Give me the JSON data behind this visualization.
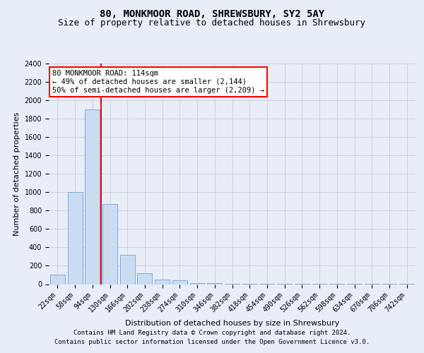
{
  "title1": "80, MONKMOOR ROAD, SHREWSBURY, SY2 5AY",
  "title2": "Size of property relative to detached houses in Shrewsbury",
  "xlabel": "Distribution of detached houses by size in Shrewsbury",
  "ylabel": "Number of detached properties",
  "footnote1": "Contains HM Land Registry data © Crown copyright and database right 2024.",
  "footnote2": "Contains public sector information licensed under the Open Government Licence v3.0.",
  "categories": [
    "22sqm",
    "58sqm",
    "94sqm",
    "130sqm",
    "166sqm",
    "202sqm",
    "238sqm",
    "274sqm",
    "310sqm",
    "346sqm",
    "382sqm",
    "418sqm",
    "454sqm",
    "490sqm",
    "526sqm",
    "562sqm",
    "598sqm",
    "634sqm",
    "670sqm",
    "706sqm",
    "742sqm"
  ],
  "values": [
    100,
    1000,
    1900,
    870,
    320,
    120,
    50,
    40,
    15,
    10,
    5,
    5,
    3,
    3,
    2,
    2,
    1,
    1,
    1,
    1,
    1
  ],
  "bar_color": "#ccdcf0",
  "bar_edge_color": "#7aaadc",
  "vline_x": 2.5,
  "vline_color": "red",
  "annotation_text": "80 MONKMOOR ROAD: 114sqm\n← 49% of detached houses are smaller (2,144)\n50% of semi-detached houses are larger (2,209) →",
  "annotation_box_color": "white",
  "annotation_box_edge": "red",
  "ylim": [
    0,
    2400
  ],
  "yticks": [
    0,
    200,
    400,
    600,
    800,
    1000,
    1200,
    1400,
    1600,
    1800,
    2000,
    2200,
    2400
  ],
  "grid_color": "#cccccc",
  "background_color": "#e8eef8",
  "plot_bg_color": "#e8eef8",
  "title1_fontsize": 10,
  "title2_fontsize": 9,
  "axis_fontsize": 8,
  "ylabel_fontsize": 8,
  "tick_fontsize": 7,
  "footnote_fontsize": 6.5,
  "annot_fontsize": 7.5
}
